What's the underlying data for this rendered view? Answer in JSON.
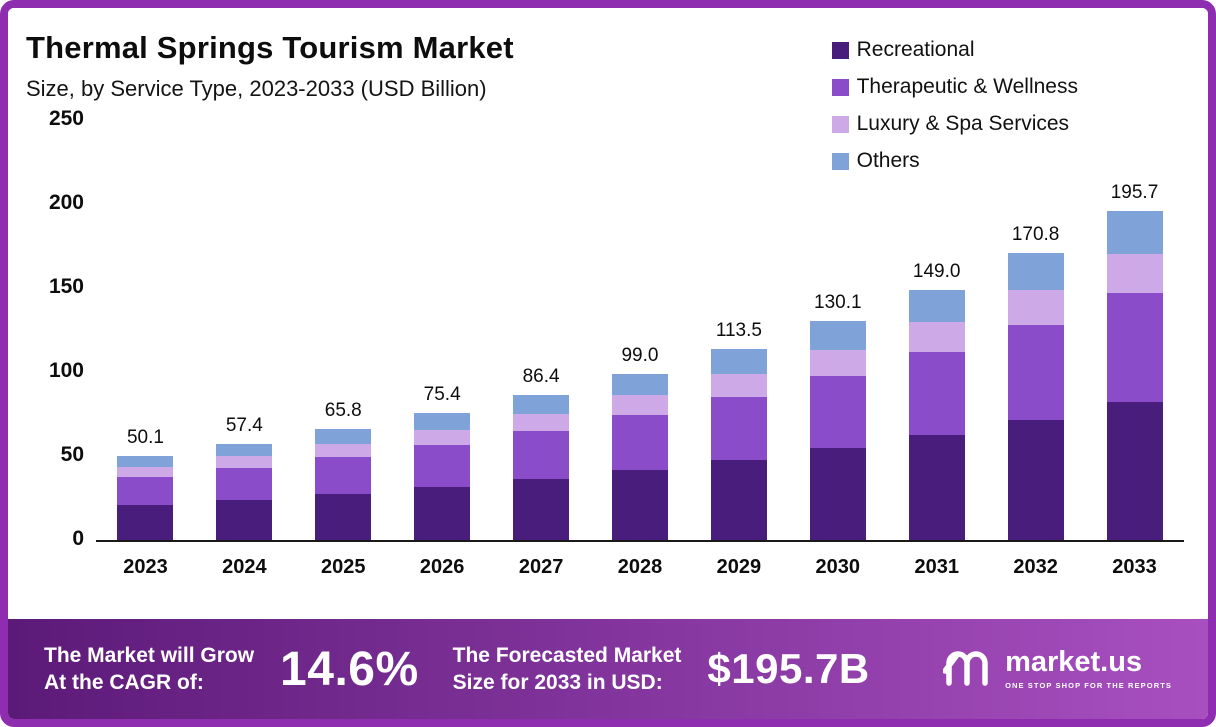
{
  "header": {
    "title": "Thermal Springs Tourism Market",
    "subtitle": "Size, by Service Type, 2023-2033 (USD Billion)"
  },
  "colors": {
    "frame": "#8e2db0",
    "footer_gradient_start": "#5c1a78",
    "footer_gradient_end": "#a84fc0",
    "recreational": "#481d7c",
    "therapeutic": "#8a4cc8",
    "luxury": "#cea9e8",
    "others": "#7fa3d8"
  },
  "legend": [
    {
      "label": "Recreational",
      "color": "#481d7c"
    },
    {
      "label": "Therapeutic & Wellness",
      "color": "#8a4cc8"
    },
    {
      "label": "Luxury & Spa Services",
      "color": "#cea9e8"
    },
    {
      "label": "Others",
      "color": "#7fa3d8"
    }
  ],
  "chart_data": {
    "type": "bar",
    "stacked": true,
    "title": "Thermal Springs Tourism Market Size, by Service Type, 2023-2033 (USD Billion)",
    "xlabel": "",
    "ylabel": "USD Billion",
    "ylim": [
      0,
      250
    ],
    "yticks": [
      0,
      50,
      100,
      150,
      200,
      250
    ],
    "grid": false,
    "legend_position": "top-right",
    "categories": [
      "2023",
      "2024",
      "2025",
      "2026",
      "2027",
      "2028",
      "2029",
      "2030",
      "2031",
      "2032",
      "2033"
    ],
    "totals": [
      "50.1",
      "57.4",
      "65.8",
      "75.4",
      "86.4",
      "99.0",
      "113.5",
      "130.1",
      "149.0",
      "170.8",
      "195.7"
    ],
    "series": [
      {
        "name": "Recreational",
        "color": "#481d7c",
        "values": [
          21.0,
          24.1,
          27.6,
          31.7,
          36.3,
          41.6,
          47.7,
          54.6,
          62.6,
          71.7,
          82.2
        ]
      },
      {
        "name": "Therapeutic & Wellness",
        "color": "#8a4cc8",
        "values": [
          16.5,
          18.9,
          21.7,
          24.9,
          28.5,
          32.7,
          37.5,
          42.9,
          49.2,
          56.4,
          64.6
        ]
      },
      {
        "name": "Luxury & Spa Services",
        "color": "#cea9e8",
        "values": [
          6.0,
          6.9,
          7.9,
          9.0,
          10.4,
          11.9,
          13.6,
          15.6,
          17.9,
          20.5,
          23.5
        ]
      },
      {
        "name": "Others",
        "color": "#7fa3d8",
        "values": [
          6.6,
          7.5,
          8.6,
          9.8,
          11.2,
          12.8,
          14.7,
          17.0,
          19.3,
          22.2,
          25.4
        ]
      }
    ]
  },
  "footer": {
    "cagr_line1": "The Market will Grow",
    "cagr_line2": "At the CAGR of:",
    "cagr_value": "14.6%",
    "forecast_line1": "The Forecasted Market",
    "forecast_line2": "Size for 2033 in USD:",
    "forecast_value": "$195.7B",
    "brand": "market.us",
    "tagline": "ONE STOP SHOP FOR THE REPORTS"
  }
}
